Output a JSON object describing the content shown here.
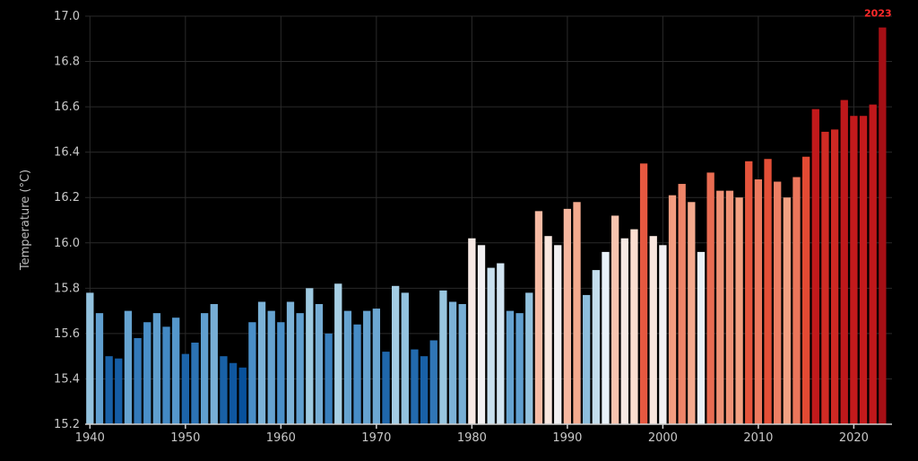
{
  "chart_data": {
    "type": "bar",
    "ylabel": "Temperature (°C)",
    "ylim": [
      15.2,
      17.0
    ],
    "xlim": [
      1939.5,
      2024.0
    ],
    "grid": true,
    "y_ticks": [
      15.2,
      15.4,
      15.6,
      15.8,
      16.0,
      16.2,
      16.4,
      16.6,
      16.8,
      17.0
    ],
    "y_tick_labels": [
      "15.2",
      "15.4",
      "15.6",
      "15.8",
      "16.0",
      "16.2",
      "16.4",
      "16.6",
      "16.8",
      "17.0"
    ],
    "x_ticks": [
      1940,
      1950,
      1960,
      1970,
      1980,
      1990,
      2000,
      2010,
      2020
    ],
    "x_tick_labels": [
      "1940",
      "1950",
      "1960",
      "1970",
      "1980",
      "1990",
      "2000",
      "2010",
      "2020"
    ],
    "years": [
      1940,
      1941,
      1942,
      1943,
      1944,
      1945,
      1946,
      1947,
      1948,
      1949,
      1950,
      1951,
      1952,
      1953,
      1954,
      1955,
      1956,
      1957,
      1958,
      1959,
      1960,
      1961,
      1962,
      1963,
      1964,
      1965,
      1966,
      1967,
      1968,
      1969,
      1970,
      1971,
      1972,
      1973,
      1974,
      1975,
      1976,
      1977,
      1978,
      1979,
      1980,
      1981,
      1982,
      1983,
      1984,
      1985,
      1986,
      1987,
      1988,
      1989,
      1990,
      1991,
      1992,
      1993,
      1994,
      1995,
      1996,
      1997,
      1998,
      1999,
      2000,
      2001,
      2002,
      2003,
      2004,
      2005,
      2006,
      2007,
      2008,
      2009,
      2010,
      2011,
      2012,
      2013,
      2014,
      2015,
      2016,
      2017,
      2018,
      2019,
      2020,
      2021,
      2022,
      2023
    ],
    "values": [
      15.78,
      15.69,
      15.5,
      15.49,
      15.7,
      15.58,
      15.65,
      15.69,
      15.63,
      15.67,
      15.51,
      15.56,
      15.69,
      15.73,
      15.5,
      15.47,
      15.45,
      15.65,
      15.74,
      15.7,
      15.65,
      15.74,
      15.69,
      15.8,
      15.73,
      15.6,
      15.82,
      15.7,
      15.64,
      15.7,
      15.71,
      15.52,
      15.81,
      15.78,
      15.53,
      15.5,
      15.57,
      15.79,
      15.74,
      15.73,
      16.02,
      15.99,
      15.89,
      15.91,
      15.7,
      15.69,
      15.78,
      16.14,
      16.03,
      15.99,
      16.15,
      16.18,
      15.77,
      15.88,
      15.96,
      16.12,
      16.02,
      16.06,
      16.35,
      16.03,
      15.99,
      16.21,
      16.26,
      16.18,
      15.96,
      16.31,
      16.23,
      16.23,
      16.2,
      16.36,
      16.28,
      16.37,
      16.27,
      16.2,
      16.29,
      16.38,
      16.59,
      16.49,
      16.5,
      16.63,
      16.56,
      16.56,
      16.61,
      16.95
    ],
    "color_scale": {
      "cold": "#08306b",
      "mid": "#f7f7f7",
      "warm": "#a50f15"
    },
    "annotations": [
      {
        "year": 2023,
        "text": "2023",
        "color": "#ff2a2a"
      }
    ]
  }
}
